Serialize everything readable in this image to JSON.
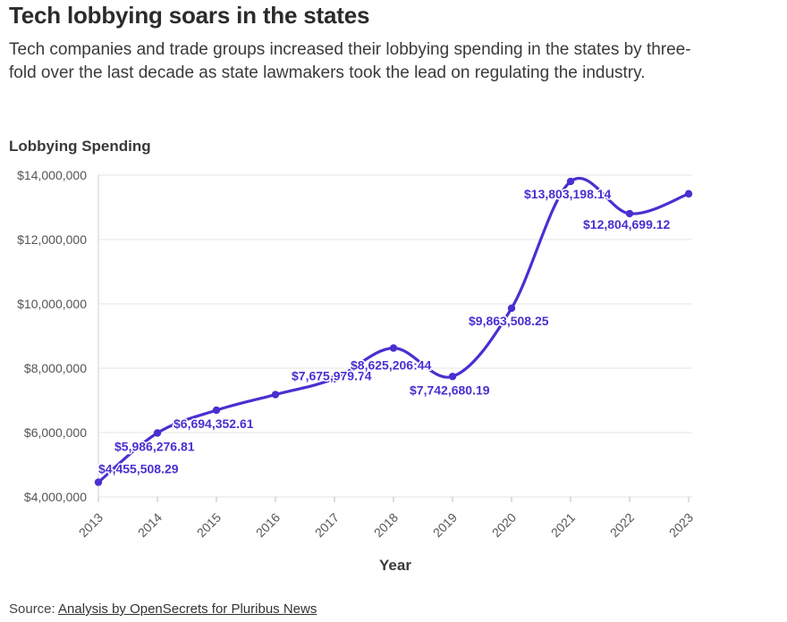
{
  "header": {
    "title": "Tech lobbying soars in the states",
    "subtitle": "Tech companies and trade groups increased their lobbying spending in the states by three-fold over the last decade as state lawmakers took the lead on regulating the industry."
  },
  "footer": {
    "source_prefix": "Source:",
    "source_link": "Analysis by OpenSecrets for Pluribus News"
  },
  "colors": {
    "line": "#4a2fd1",
    "grid": "#e6e6e6"
  },
  "chart_data": {
    "type": "line",
    "ylabel": "Lobbying Spending",
    "xlabel": "Year",
    "ylim": [
      4000000,
      14000000
    ],
    "yticks": [
      4000000,
      6000000,
      8000000,
      10000000,
      12000000,
      14000000
    ],
    "ytick_labels": [
      "$4,000,000",
      "$6,000,000",
      "$8,000,000",
      "$10,000,000",
      "$12,000,000",
      "$14,000,000"
    ],
    "x": [
      "2013",
      "2014",
      "2015",
      "2016",
      "2017",
      "2018",
      "2019",
      "2020",
      "2021",
      "2022",
      "2023"
    ],
    "values": [
      4455508.29,
      5986276.81,
      6694352.61,
      7180000,
      7675979.74,
      8625206.44,
      7742680.19,
      9863508.25,
      13803198.14,
      12804699.12,
      13420000
    ],
    "data_labels": [
      "$4,455,508.29",
      "$5,986,276.81",
      "$6,694,352.61",
      "",
      "$7,675,979.74",
      "$8,625,206:44",
      "$7,742,680.19",
      "$9,863,508.25",
      "$13,803,198.14",
      "$12,804,699.12",
      ""
    ],
    "grid": true,
    "legend": "none"
  }
}
